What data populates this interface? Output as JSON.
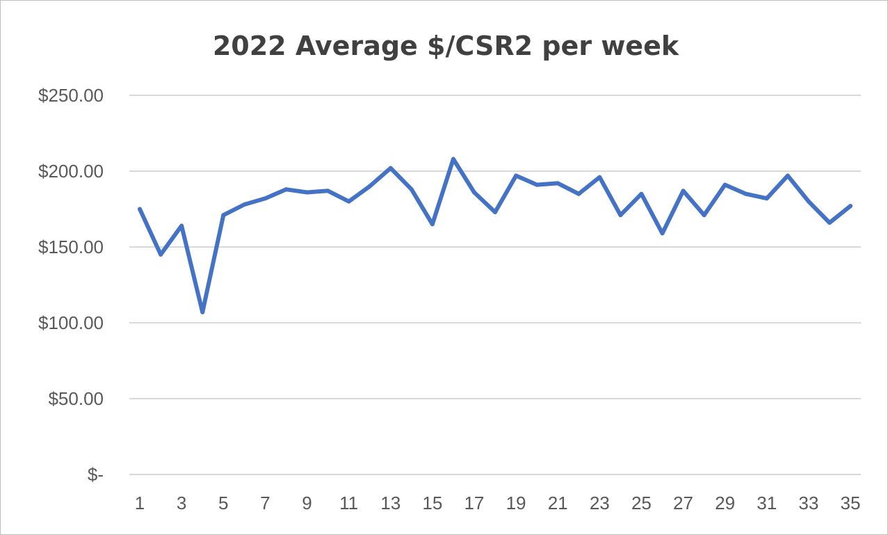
{
  "chart_data": {
    "type": "line",
    "title": "2022 Average $/CSR2 per week",
    "xlabel": "",
    "ylabel": "",
    "x": [
      1,
      2,
      3,
      4,
      5,
      6,
      7,
      8,
      9,
      10,
      11,
      12,
      13,
      14,
      15,
      16,
      17,
      18,
      19,
      20,
      21,
      22,
      23,
      24,
      25,
      26,
      27,
      28,
      29,
      30,
      31,
      32,
      33,
      34,
      35
    ],
    "x_tick_labels": [
      "1",
      "3",
      "5",
      "7",
      "9",
      "11",
      "13",
      "15",
      "17",
      "19",
      "21",
      "23",
      "25",
      "27",
      "29",
      "31",
      "33",
      "35"
    ],
    "y_tick_labels": [
      "$-",
      "$50.00",
      "$100.00",
      "$150.00",
      "$200.00",
      "$250.00"
    ],
    "ylim": [
      0,
      250
    ],
    "grid": true,
    "legend": "none",
    "series": [
      {
        "color": "#4472c4",
        "values": [
          175,
          145,
          164,
          107,
          171,
          178,
          182,
          188,
          186,
          187,
          180,
          190,
          202,
          188,
          165,
          208,
          186,
          173,
          197,
          191,
          192,
          185,
          196,
          171,
          185,
          159,
          187,
          171,
          191,
          185,
          182,
          197,
          180,
          166,
          177
        ]
      }
    ]
  }
}
